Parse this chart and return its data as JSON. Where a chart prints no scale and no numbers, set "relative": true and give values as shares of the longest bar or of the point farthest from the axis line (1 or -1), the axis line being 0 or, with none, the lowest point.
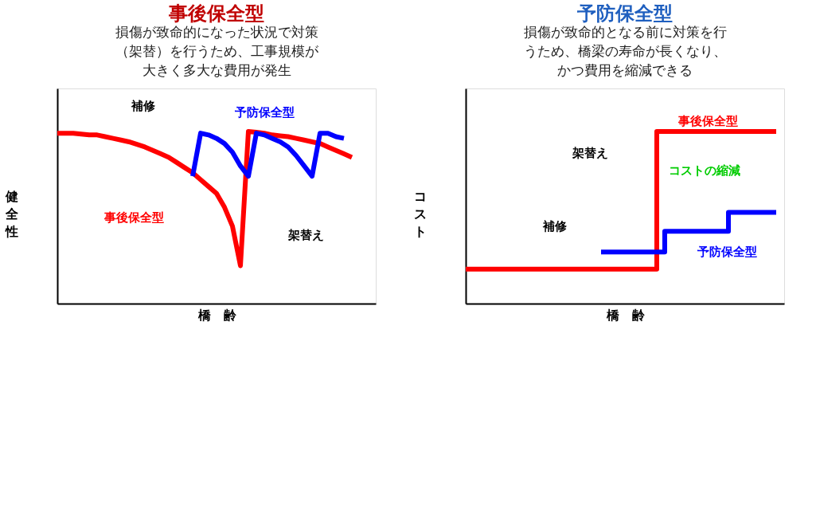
{
  "chart_data": [
    {
      "type": "line",
      "title": "事後保全型",
      "subtitle": "損傷が致命的になった状況で対策（架替）を行うため、工事規模が大きく多大な費用が発生",
      "xlabel": "橋　齢",
      "ylabel": "健全性",
      "relative": true,
      "categories": [
        null,
        null,
        null,
        null,
        null,
        null,
        null,
        null,
        null,
        null,
        null,
        null,
        null,
        null,
        null,
        null,
        null,
        null,
        null,
        null,
        null,
        null,
        null,
        null,
        null,
        null,
        null,
        null,
        null,
        null,
        null,
        null,
        null,
        null,
        null,
        null,
        null,
        null,
        null,
        null,
        null
      ],
      "series": [
        {
          "color": "#ff0000",
          "values": [
            0.99,
            0.99,
            0.99,
            0.985,
            0.98,
            0.98,
            0.97,
            0.96,
            0.95,
            0.94,
            0.925,
            0.91,
            0.89,
            0.87,
            0.85,
            0.82,
            0.79,
            0.76,
            0.72,
            0.68,
            0.64,
            0.56,
            0.45,
            0.22,
            1.0,
            0.995,
            0.99,
            0.98,
            0.975,
            0.97,
            0.96,
            0.95,
            0.94,
            0.93,
            0.91,
            0.89,
            0.87,
            0.85,
            null,
            null,
            null
          ]
        },
        {
          "color": "#0000ff",
          "values": [
            null,
            null,
            null,
            null,
            null,
            null,
            null,
            null,
            null,
            null,
            null,
            null,
            null,
            null,
            null,
            null,
            null,
            0.74,
            0.99,
            0.98,
            0.96,
            0.93,
            0.88,
            0.8,
            0.74,
            0.99,
            0.98,
            0.96,
            0.94,
            0.91,
            0.86,
            0.8,
            0.74,
            0.99,
            0.99,
            0.97,
            0.96,
            null,
            null,
            null,
            null
          ]
        }
      ],
      "annotations": [
        "補修",
        "予防保全型",
        "事後保全型",
        "架替え"
      ]
    },
    {
      "type": "step",
      "title": "予防保全型",
      "subtitle": "損傷が致命的となる前に対策を行うため、橋梁の寿命が長くなり、かつ費用を縮減できる",
      "xlabel": "橋　齢",
      "ylabel": "コスト",
      "relative": true,
      "categories": [
        null,
        null,
        null,
        null,
        null,
        null,
        null,
        null,
        null,
        null,
        null,
        null,
        null,
        null,
        null,
        null,
        null,
        null,
        null,
        null,
        null,
        null,
        null,
        null,
        null,
        null,
        null,
        null,
        null,
        null,
        null,
        null,
        null,
        null,
        null,
        null,
        null,
        null,
        null,
        null,
        null
      ],
      "series": [
        {
          "color": "#ff0000",
          "values": [
            0.2,
            0.2,
            0.2,
            0.2,
            0.2,
            0.2,
            0.2,
            0.2,
            0.2,
            0.2,
            0.2,
            0.2,
            0.2,
            0.2,
            0.2,
            0.2,
            0.2,
            0.2,
            0.2,
            0.2,
            0.2,
            0.2,
            0.2,
            0.2,
            1.0,
            1.0,
            1.0,
            1.0,
            1.0,
            1.0,
            1.0,
            1.0,
            1.0,
            1.0,
            1.0,
            1.0,
            1.0,
            1.0,
            1.0,
            1.0,
            null
          ]
        },
        {
          "color": "#0000ff",
          "values": [
            null,
            null,
            null,
            null,
            null,
            null,
            null,
            null,
            null,
            null,
            null,
            null,
            null,
            null,
            null,
            null,
            null,
            0.3,
            0.3,
            0.3,
            0.3,
            0.3,
            0.3,
            0.3,
            0.3,
            0.42,
            0.42,
            0.42,
            0.42,
            0.42,
            0.42,
            0.42,
            0.42,
            0.53,
            0.53,
            0.53,
            0.53,
            0.53,
            0.53,
            0.53,
            null
          ]
        }
      ],
      "annotations": [
        "事後保全型",
        "架替え",
        "コストの縮減",
        "補修",
        "予防保全型"
      ]
    }
  ]
}
